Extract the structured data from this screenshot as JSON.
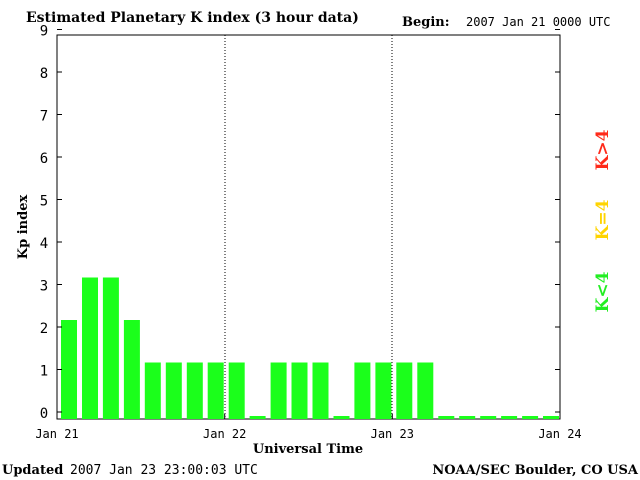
{
  "header": {
    "title": "Estimated Planetary K index (3 hour data)",
    "begin_label": "Begin:",
    "begin_value": "2007 Jan 21 0000 UTC"
  },
  "footer": {
    "updated_label": "Updated",
    "updated_value": "2007 Jan 23 23:00:03 UTC",
    "source": "NOAA/SEC Boulder, CO USA"
  },
  "legend": {
    "above": "K>4",
    "equal": "K=4",
    "below": "K<4"
  },
  "colors": {
    "bar": "#1bff1b",
    "above": "#ff2a1a",
    "equal": "#ffd400",
    "below": "#22ee22",
    "axis": "#000000"
  },
  "chart_data": {
    "type": "bar",
    "title": "Estimated Planetary K index (3 hour data)",
    "xlabel": "Universal Time",
    "ylabel": "Kp index",
    "ylim": [
      0,
      9
    ],
    "yticks": [
      "0",
      "1",
      "2",
      "3",
      "4",
      "5",
      "6",
      "7",
      "8",
      "9"
    ],
    "xticks": [
      "Jan 21",
      "Jan 22",
      "Jan 23",
      "Jan 24"
    ],
    "grid": "vertical dotted lines at day boundaries",
    "interval_hours": 3,
    "values": [
      2,
      3,
      3,
      2,
      1,
      1,
      1,
      1,
      1,
      0,
      1,
      1,
      1,
      0,
      1,
      1,
      1,
      1,
      0,
      0,
      0,
      0,
      0,
      0
    ]
  }
}
